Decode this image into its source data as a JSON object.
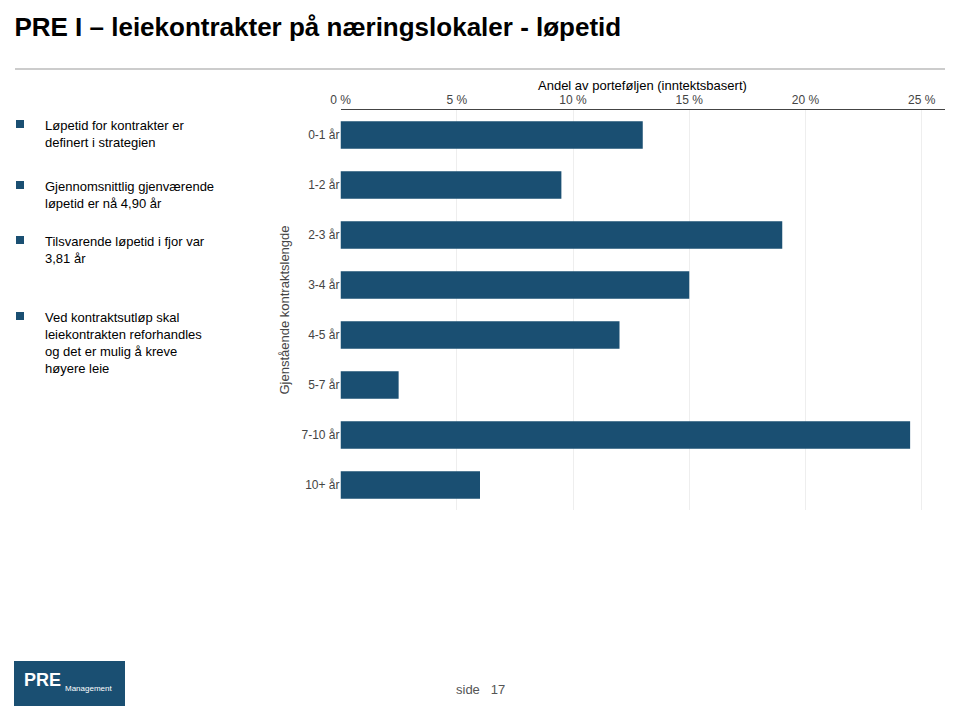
{
  "chart_data": {
    "type": "bar",
    "orientation": "horizontal",
    "title": "PRE I – leiekontrakter på næringslokaler - løpetid",
    "subtitle": "Andel av porteføljen (inntektsbasert)",
    "ylabel": "Gjenstående kontraktslengde",
    "categories": [
      "0-1 år",
      "1-2 år",
      "2-3 år",
      "3-4 år",
      "4-5 år",
      "5-7 år",
      "7-10 år",
      "10+ år"
    ],
    "values": [
      13.0,
      9.5,
      19.0,
      15.0,
      12.0,
      2.5,
      24.5,
      6.0
    ],
    "color": "#1a4f72",
    "xlim": [
      0,
      26
    ],
    "xticks": [
      {
        "value": 0,
        "label": "0 %"
      },
      {
        "value": 5,
        "label": "5 %"
      },
      {
        "value": 10,
        "label": "10 %"
      },
      {
        "value": 15,
        "label": "15 %"
      },
      {
        "value": 20,
        "label": "20 %"
      },
      {
        "value": 25,
        "label": "25 %"
      }
    ],
    "grid": true,
    "annotations": [
      "Løpetid for kontrakter er\ndefinert i strategien",
      "Gjennomsnittlig gjenværende\nløpetid er nå 4,90 år",
      "Tilsvarende løpetid i fjor var\n3,81 år",
      "Ved kontraktsutløp skal\nleiekontrakten reforhandles\nog det er mulig å kreve\nhøyere leie",
      "side   17",
      "PRE",
      "Management"
    ]
  }
}
